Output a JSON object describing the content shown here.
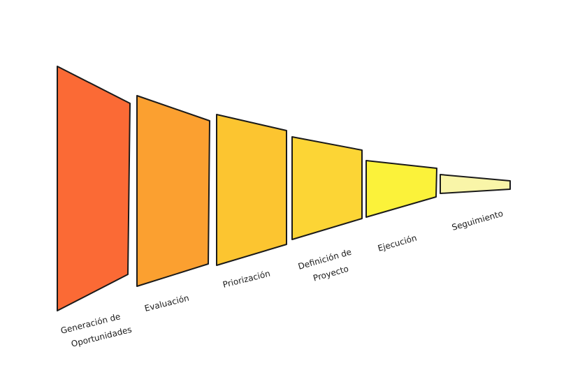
{
  "stages": [
    {
      "label": [
        "Generación de",
        "Oportunidades"
      ]
    },
    {
      "label": [
        "Evaluación"
      ]
    },
    {
      "label": [
        "Priorización"
      ]
    },
    {
      "label": [
        "Definición de",
        "Proyecto"
      ]
    },
    {
      "label": [
        "Ejecución"
      ]
    },
    {
      "label": [
        "Seguimiento"
      ]
    }
  ]
}
